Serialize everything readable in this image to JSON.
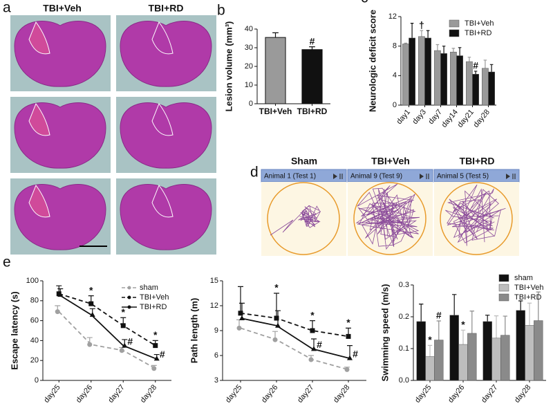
{
  "panel_a": {
    "label": "a",
    "columns": [
      "TBI+Veh",
      "TBI+RD"
    ]
  },
  "panel_d": {
    "label": "d",
    "tracks": [
      {
        "title": "Sham",
        "header": "Animal 1 (Test 1)"
      },
      {
        "title": "TBI+Veh",
        "header": "Animal 9 (Test 9)"
      },
      {
        "title": "TBI+RD",
        "header": "Animal 5 (Test 5)"
      }
    ]
  },
  "chart_data": [
    {
      "type": "bar",
      "panel": "b",
      "ylabel": "Lesion volume (mm³)",
      "categories": [
        "TBI+Veh",
        "TBI+RD"
      ],
      "values": [
        35.5,
        29
      ],
      "errors": [
        2.5,
        1.5
      ],
      "colors": [
        "#9a9a9a",
        "#111111"
      ],
      "annotations": [
        null,
        "#"
      ],
      "ylim": [
        0,
        40
      ],
      "yticks": [
        0,
        10,
        20,
        30,
        40
      ]
    },
    {
      "type": "bar",
      "panel": "c",
      "ylabel": "Neurologic deficit score",
      "categories": [
        "day1",
        "day3",
        "day7",
        "day14",
        "day21",
        "day28"
      ],
      "series": [
        {
          "name": "TBI+Veh",
          "color": "#9a9a9a",
          "values": [
            8.3,
            9.3,
            7.4,
            7.2,
            5.9,
            5.0
          ],
          "errors": [
            0.1,
            0.8,
            0.8,
            0.5,
            0.6,
            1.1
          ],
          "annotations": [
            null,
            "†",
            null,
            null,
            null,
            null
          ]
        },
        {
          "name": "TBI+RD",
          "color": "#111111",
          "values": [
            9.1,
            9.1,
            7.0,
            6.7,
            4.2,
            4.5
          ],
          "errors": [
            2.0,
            1.0,
            1.0,
            1.1,
            0.4,
            1.0
          ],
          "annotations": [
            null,
            null,
            null,
            null,
            "#",
            null
          ]
        }
      ],
      "legend": "upper right",
      "ylim": [
        0,
        12
      ],
      "yticks": [
        0,
        4,
        8,
        12
      ]
    },
    {
      "type": "line",
      "panel": "e",
      "ylabel": "Escape latency (s)",
      "categories": [
        "day25",
        "day26",
        "day27",
        "day28"
      ],
      "series": [
        {
          "name": "sham",
          "color": "#a0a0a0",
          "marker": "circle",
          "dash": true,
          "values": [
            69,
            36,
            30,
            12
          ],
          "errors": [
            6,
            7,
            3,
            3
          ],
          "annotations": [
            null,
            null,
            null,
            null
          ]
        },
        {
          "name": "TBI+Veh",
          "color": "#111111",
          "marker": "square",
          "dash": true,
          "values": [
            87,
            77,
            55,
            35
          ],
          "errors": [
            8,
            8,
            8,
            5
          ],
          "annotations": [
            null,
            "*",
            "*",
            "*"
          ]
        },
        {
          "name": "TBI+RD",
          "color": "#111111",
          "marker": "triangle",
          "dash": false,
          "values": [
            86,
            66,
            35,
            22
          ],
          "errors": [
            6,
            6,
            6,
            4
          ],
          "annotations": [
            null,
            null,
            "#",
            "#"
          ]
        }
      ],
      "legend": "upper right",
      "ylim": [
        0,
        100
      ],
      "yticks": [
        0,
        20,
        40,
        60,
        80,
        100
      ]
    },
    {
      "type": "line",
      "ylabel": "Path length (m)",
      "categories": [
        "day25",
        "day26",
        "day27",
        "day28"
      ],
      "series": [
        {
          "name": "sham",
          "color": "#a0a0a0",
          "marker": "circle",
          "dash": true,
          "values": [
            9.3,
            7.9,
            5.5,
            4.3
          ],
          "errors": [
            1.0,
            1.0,
            0.5,
            0.3
          ],
          "annotations": [
            null,
            null,
            null,
            null
          ]
        },
        {
          "name": "TBI+Veh",
          "color": "#111111",
          "marker": "square",
          "dash": true,
          "values": [
            11.1,
            10.5,
            9.0,
            8.3
          ],
          "errors": [
            3.2,
            3.0,
            1.2,
            1.0
          ],
          "annotations": [
            null,
            "*",
            "*",
            "*"
          ]
        },
        {
          "name": "TBI+RD",
          "color": "#111111",
          "marker": "triangle",
          "dash": false,
          "values": [
            10.5,
            9.6,
            6.8,
            5.7
          ],
          "errors": [
            1.8,
            1.8,
            1.2,
            1.5
          ],
          "annotations": [
            null,
            null,
            "#",
            "#"
          ]
        }
      ],
      "ylim": [
        3,
        15
      ],
      "yticks": [
        3,
        6,
        9,
        12,
        15
      ]
    },
    {
      "type": "bar",
      "ylabel": "Swimming speed (m/s)",
      "categories": [
        "day25",
        "day26",
        "day27",
        "day28"
      ],
      "series": [
        {
          "name": "sham",
          "color": "#111111",
          "values": [
            0.185,
            0.205,
            0.185,
            0.22
          ],
          "errors": [
            0.055,
            0.065,
            0.02,
            0.03
          ],
          "annotations": [
            null,
            null,
            null,
            null
          ]
        },
        {
          "name": "TBI+Veh",
          "color": "#bdbdbd",
          "values": [
            0.075,
            0.113,
            0.133,
            0.173
          ],
          "errors": [
            0.035,
            0.045,
            0.07,
            0.07
          ],
          "annotations": [
            "*",
            "*",
            null,
            null
          ]
        },
        {
          "name": "TBI+RD",
          "color": "#8a8a8a",
          "values": [
            0.127,
            0.148,
            0.142,
            0.188
          ],
          "errors": [
            0.06,
            0.07,
            0.06,
            0.09
          ],
          "annotations": [
            "#",
            null,
            null,
            null
          ]
        }
      ],
      "legend": "upper right",
      "ylim": [
        0,
        0.3
      ],
      "yticks": [
        {
          "value": 0,
          "label": "0.0"
        },
        0.1,
        0.2,
        0.3
      ]
    }
  ]
}
